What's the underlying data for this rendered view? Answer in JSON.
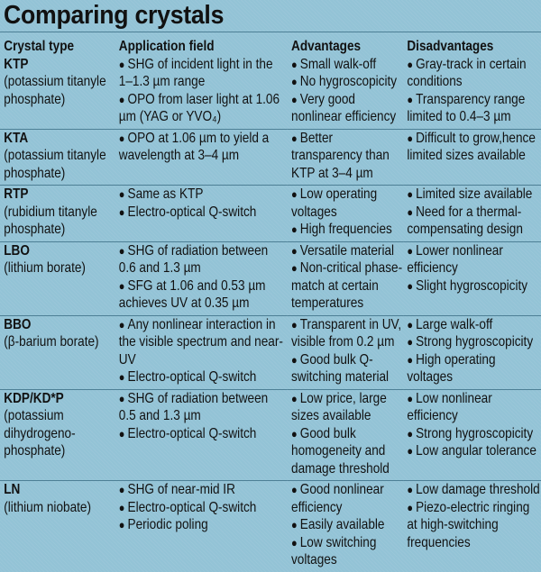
{
  "title": "Comparing crystals",
  "headers": [
    "Crystal type",
    "Application field",
    "Advantages",
    "Disadvantages"
  ],
  "rows": [
    {
      "name": "KTP",
      "full": "(potassium titanyle phosphate)",
      "app": [
        "SHG of incident light in the 1–1.3 µm range",
        "OPO from laser light at 1.06 µm (YAG or YVO₄)"
      ],
      "adv": [
        "Small walk-off",
        "No hygroscopicity",
        "Very good nonlinear efficiency"
      ],
      "dis": [
        "Gray-track in certain conditions",
        "Transparency range limited to 0.4–3 µm"
      ]
    },
    {
      "name": "KTA",
      "full": "(potassium titanyle phosphate)",
      "app": [
        "OPO at 1.06 µm to yield a wavelength at 3–4 µm"
      ],
      "adv": [
        "Better transparency than KTP at 3–4 µm"
      ],
      "dis": [
        "Difficult to grow,hence limited sizes available"
      ]
    },
    {
      "name": "RTP",
      "full": "(rubidium titanyle phosphate)",
      "app": [
        "Same as KTP",
        "Electro-optical Q-switch"
      ],
      "adv": [
        "Low operating voltages",
        "High frequencies"
      ],
      "dis": [
        "Limited size available",
        "Need for a thermal-compensating design"
      ]
    },
    {
      "name": "LBO",
      "full": "(lithium borate)",
      "app": [
        "SHG of radiation between 0.6 and 1.3 µm",
        "SFG at 1.06 and 0.53 µm achieves UV at 0.35 µm"
      ],
      "adv": [
        "Versatile material",
        "Non-critical phase-match at certain temperatures"
      ],
      "dis": [
        "Lower nonlinear efficiency",
        "Slight hygroscopicity"
      ]
    },
    {
      "name": "BBO",
      "full": "(β-barium borate)",
      "app": [
        "Any nonlinear interaction in the visible spectrum and near-UV",
        "Electro-optical Q-switch"
      ],
      "adv": [
        "Transparent in UV, visible from 0.2 µm",
        "Good bulk Q-switching material"
      ],
      "dis": [
        "Large walk-off",
        "Strong hygroscopicity",
        "High operating voltages"
      ]
    },
    {
      "name": "KDP/KD*P",
      "full": "(potassium dihydrogeno-phosphate)",
      "app": [
        "SHG of radiation between 0.5 and 1.3 µm",
        "Electro-optical Q-switch"
      ],
      "adv": [
        "Low price, large sizes available",
        "Good bulk homogeneity and damage threshold"
      ],
      "dis": [
        "Low nonlinear efficiency",
        "Strong hygroscopicity",
        "Low angular tolerance"
      ]
    },
    {
      "name": "LN",
      "full": "(lithium niobate)",
      "app": [
        "SHG of near-mid IR",
        "Electro-optical Q-switch",
        "Periodic poling"
      ],
      "adv": [
        "Good nonlinear efficiency",
        "Easily available",
        "Low switching voltages"
      ],
      "dis": [
        "Low damage threshold",
        "Piezo-electric ringing at high-switching frequencies"
      ]
    }
  ],
  "colors": {
    "background": "#93c3d6",
    "rule": "#4d7f95",
    "text": "#111111"
  }
}
